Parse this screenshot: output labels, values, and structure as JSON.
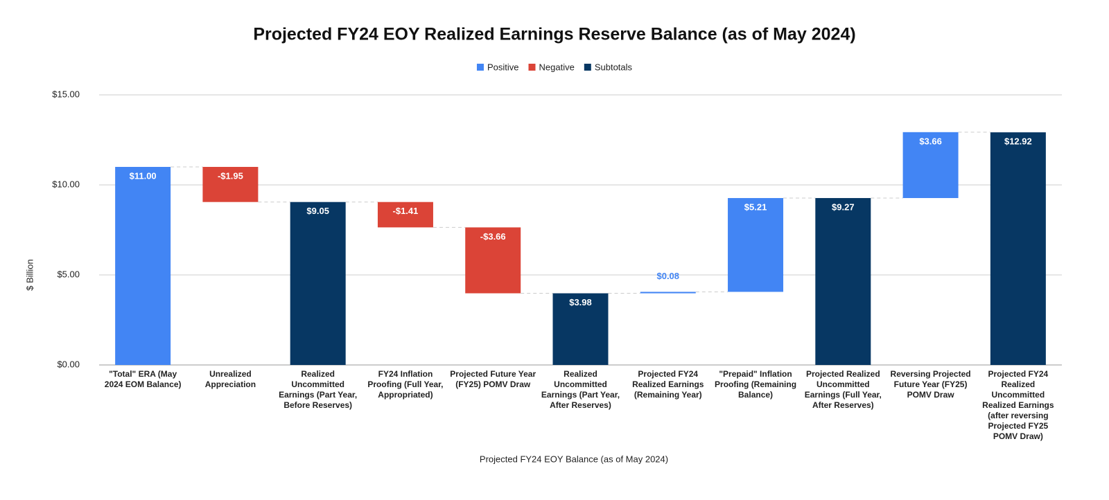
{
  "chart_data": {
    "type": "waterfall",
    "title": "Projected FY24 EOY Realized Earnings Reserve Balance (as of May 2024)",
    "x_label": "Projected FY24 EOY Balance (as of May 2024)",
    "y_label": "$ Billion",
    "categories": [
      "\"Total\" ERA (May 2024 EOM Balance)",
      "Unrealized Appreciation",
      "Realized Uncommitted Earnings (Part Year, Before Reserves)",
      "FY24 Inflation Proofing (Full Year, Appropriated)",
      "Projected Future Year (FY25) POMV Draw",
      "Realized Uncommitted Earnings (Part Year, After Reserves)",
      "Projected FY24 Realized Earnings (Remaining Year)",
      "\"Prepaid\" Inflation Proofing (Remaining Balance)",
      "Projected Realized Uncommitted Earnings (Full Year, After Reserves)",
      "Reversing Projected Future Year (FY25) POMV Draw",
      "Projected FY24 Realized Uncommitted Realized Earnings (after reversing Projected FY25 POMV Draw)"
    ],
    "series": [
      {
        "name": "Positive",
        "color": "#4285f4",
        "values": [
          11.0,
          null,
          null,
          null,
          null,
          null,
          0.08,
          5.21,
          null,
          3.66,
          null
        ],
        "value_labels": [
          "$11.00",
          null,
          null,
          null,
          null,
          null,
          "$0.08",
          "$5.21",
          null,
          "$3.66",
          null
        ]
      },
      {
        "name": "Negative",
        "color": "#db4437",
        "values": [
          null,
          -1.95,
          null,
          -1.41,
          -3.66,
          null,
          null,
          null,
          null,
          null,
          null
        ],
        "value_labels": [
          null,
          "-$1.95",
          null,
          "-$1.41",
          "-$3.66",
          null,
          null,
          null,
          null,
          null,
          null
        ]
      },
      {
        "name": "Subtotals",
        "color": "#073763",
        "total": true,
        "values": [
          null,
          null,
          9.05,
          null,
          null,
          3.98,
          null,
          null,
          9.27,
          null,
          12.92
        ],
        "value_labels": [
          null,
          null,
          "$9.05",
          null,
          null,
          "$3.98",
          null,
          null,
          "$9.27",
          null,
          "$12.92"
        ]
      }
    ],
    "ylim": [
      0,
      15
    ],
    "yticks": [
      {
        "value": 0,
        "label": "$0.00"
      },
      {
        "value": 5,
        "label": "$5.00"
      },
      {
        "value": 10,
        "label": "$10.00"
      },
      {
        "value": 15,
        "label": "$15.00"
      }
    ],
    "grid": true,
    "legend": "top"
  }
}
